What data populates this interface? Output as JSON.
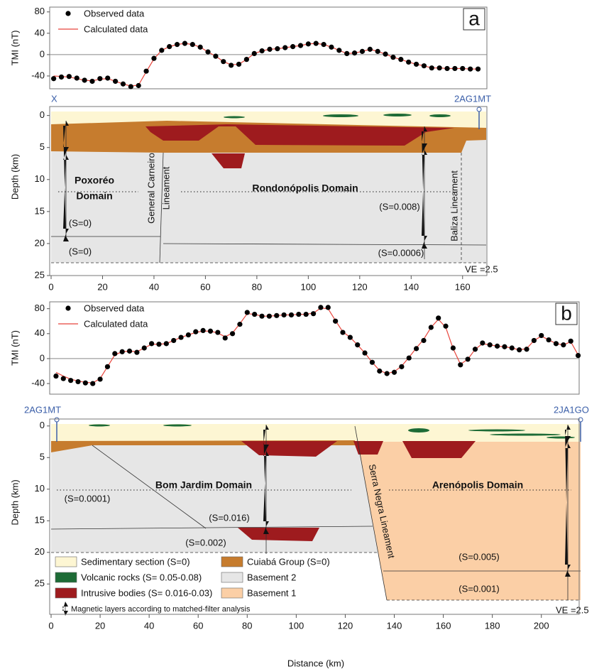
{
  "chart_data": [
    {
      "type": "scatter",
      "label": "a",
      "ylabel": "TMI (nT)",
      "xlim": [
        0,
        170
      ],
      "ylim": [
        -64,
        89
      ],
      "yticks": [
        -40,
        0,
        40,
        80
      ],
      "x": [
        1,
        4,
        7,
        10,
        13,
        16,
        19,
        22,
        25,
        28,
        31,
        34,
        37,
        40,
        43,
        46,
        49,
        52,
        55,
        58,
        61,
        64,
        67,
        70,
        73,
        76,
        79,
        82,
        85,
        88,
        91,
        94,
        97,
        100,
        103,
        106,
        109,
        112,
        115,
        118,
        121,
        124,
        127,
        130,
        133,
        136,
        139,
        142,
        145,
        148,
        151,
        154,
        157,
        160,
        163,
        166
      ],
      "series": [
        {
          "name": "Observed data",
          "color": "#000000",
          "values": [
            -45,
            -42,
            -41,
            -44,
            -48,
            -50,
            -45,
            -44,
            -50,
            -55,
            -60,
            -58,
            -31,
            -7,
            8,
            15,
            19,
            21,
            19,
            14,
            5,
            -3,
            -13,
            -20,
            -18,
            -9,
            2,
            7,
            10,
            11,
            13,
            15,
            17,
            20,
            21,
            19,
            14,
            8,
            2,
            3,
            6,
            10,
            6,
            1,
            -5,
            -9,
            -14,
            -18,
            -21,
            -25,
            -25,
            -26,
            -26,
            -26,
            -27,
            -27
          ]
        },
        {
          "name": "Calculated data",
          "color": "#e8453c",
          "values": [
            -40,
            -41,
            -42,
            -45,
            -48,
            -49,
            -46,
            -45,
            -50,
            -55,
            -59,
            -57,
            -32,
            -8,
            8,
            15,
            19,
            21,
            19,
            14,
            5,
            -3,
            -13,
            -19,
            -18,
            -9,
            2,
            7,
            10,
            11,
            13,
            15,
            17,
            20,
            21,
            19,
            14,
            8,
            2,
            3,
            6,
            10,
            6,
            1,
            -5,
            -9,
            -14,
            -18,
            -21,
            -25,
            -25,
            -26,
            -26,
            -26,
            -27,
            -27
          ]
        }
      ]
    },
    {
      "type": "section",
      "ylabel": "Depth (km)",
      "xlim": [
        0,
        170
      ],
      "ylim": [
        -1.4,
        25
      ],
      "xticks": [
        0,
        20,
        40,
        60,
        80,
        100,
        120,
        140,
        160
      ],
      "yticks": [
        0,
        5,
        10,
        15,
        20,
        25
      ],
      "annotations": [
        "X",
        "2AG1MT",
        "Poxoréo",
        "Domain",
        "General Carneiro",
        "Lineament",
        "Rondonópolis Domain",
        "(S=0)",
        "(S=0)",
        "(S=0.008)",
        "(S=0.0006)",
        "Baliza Lineament",
        "VE =2.5"
      ]
    },
    {
      "type": "scatter",
      "label": "b",
      "ylabel": "TMI (nT)",
      "xlim": [
        0,
        216
      ],
      "ylim": [
        -57,
        91
      ],
      "yticks": [
        -40,
        0,
        40,
        80
      ],
      "x": [
        2,
        5,
        8,
        11,
        14,
        17,
        20,
        23,
        26,
        29,
        32,
        35,
        38,
        41,
        44,
        47,
        50,
        53,
        56,
        59,
        62,
        65,
        68,
        71,
        74,
        77,
        80,
        83,
        86,
        89,
        92,
        95,
        98,
        101,
        104,
        107,
        110,
        113,
        116,
        119,
        122,
        125,
        128,
        131,
        134,
        137,
        140,
        143,
        146,
        149,
        152,
        155,
        158,
        161,
        164,
        167,
        170,
        173,
        176,
        179,
        182,
        185,
        188,
        191,
        194,
        197,
        200,
        203,
        206,
        209,
        212,
        215
      ],
      "series": [
        {
          "name": "Observed data",
          "color": "#000000",
          "values": [
            -28,
            -32,
            -35,
            -37,
            -39,
            -40,
            -33,
            -13,
            8,
            11,
            12,
            10,
            17,
            24,
            23,
            24,
            29,
            34,
            38,
            43,
            45,
            44,
            42,
            33,
            40,
            55,
            74,
            71,
            68,
            68,
            69,
            70,
            70,
            71,
            71,
            72,
            82,
            82,
            60,
            42,
            34,
            22,
            9,
            -6,
            -20,
            -24,
            -22,
            -13,
            1,
            16,
            29,
            50,
            65,
            52,
            17,
            -10,
            -1,
            15,
            25,
            22,
            20,
            19,
            17,
            14,
            15,
            29,
            37,
            30,
            24,
            22,
            28,
            5
          ]
        },
        {
          "name": "Calculated data",
          "color": "#e8453c",
          "values": [
            -22,
            -28,
            -33,
            -36,
            -38,
            -39,
            -32,
            -13,
            6,
            11,
            12,
            11,
            17,
            23,
            23,
            24,
            29,
            34,
            38,
            42,
            44,
            44,
            41,
            35,
            41,
            56,
            72,
            71,
            68,
            68,
            69,
            70,
            70,
            71,
            71,
            73,
            81,
            80,
            61,
            43,
            34,
            22,
            9,
            -6,
            -19,
            -24,
            -21,
            -12,
            2,
            17,
            31,
            50,
            63,
            50,
            16,
            -9,
            -1,
            15,
            24,
            22,
            20,
            19,
            17,
            14,
            16,
            29,
            36,
            30,
            24,
            22,
            27,
            6
          ]
        }
      ]
    },
    {
      "type": "section",
      "ylabel": "Depth (km)",
      "xlabel": "Distance (km)",
      "xlim": [
        0,
        216
      ],
      "ylim": [
        -1.1,
        29.8
      ],
      "xticks": [
        0,
        20,
        40,
        60,
        80,
        100,
        120,
        140,
        160,
        180,
        200
      ],
      "yticks": [
        0,
        5,
        10,
        15,
        20,
        25
      ],
      "annotations": [
        "2AG1MT",
        "2JA1GO",
        "Bom Jardim Domain",
        "Arenópolis Domain",
        "Serra Negra Lineament",
        "(S=0.0001)",
        "(S=0.016)",
        "(S=0.002)",
        "(S=0.005)",
        "(S=0.001)",
        "VE =2.5"
      ]
    }
  ],
  "legend": [
    {
      "label": "Sedimentary section (S=0)",
      "color": "#fdf6d3"
    },
    {
      "label": "Volcanic rocks (S= 0.05-0.08)",
      "color": "#1d6b36"
    },
    {
      "label": "Intrusive bodies (S= 0.016-0.03)",
      "color": "#9e1b1e"
    },
    {
      "label": "Cuiabá Group (S=0)",
      "color": "#c67c2e"
    },
    {
      "label": "Basement 2",
      "color": "#e6e6e6"
    },
    {
      "label": "Basement 1",
      "color": "#fbcfa6"
    },
    {
      "label": "Magnetic layers according to matched-filter analysis"
    }
  ]
}
